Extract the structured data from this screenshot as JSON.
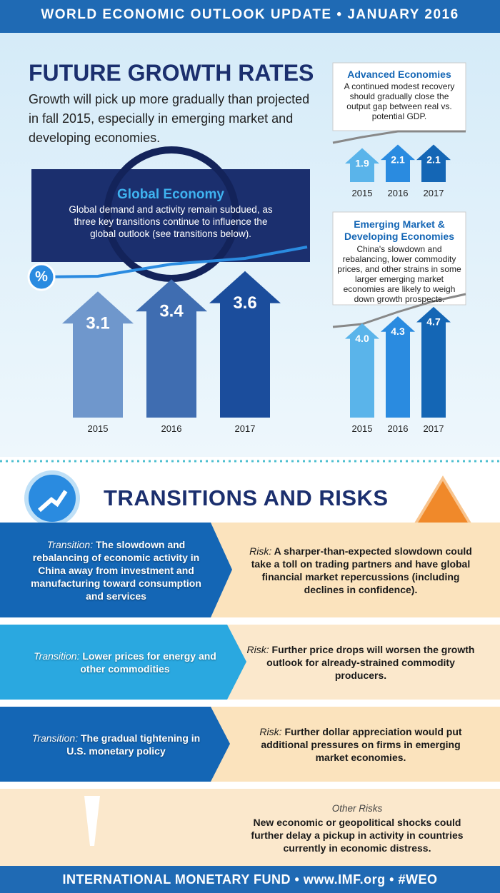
{
  "header": {
    "title": "WORLD ECONOMIC OUTLOOK UPDATE • JANUARY 2016"
  },
  "growth": {
    "title": "FUTURE GROWTH RATES",
    "intro": "Growth will pick up more gradually than projected in fall 2015, especially in emerging market and developing economies.",
    "global": {
      "title": "Global Economy",
      "text": "Global demand and activity remain subdued, as three key transitions continue to influence the global outlook (see transitions below).",
      "icon": "%",
      "years": [
        "2015",
        "2016",
        "2017"
      ],
      "values": [
        3.1,
        3.4,
        3.6
      ]
    },
    "advanced": {
      "title": "Advanced Economies",
      "text": "A continued modest recovery should gradually close the output gap between real vs. potential GDP.",
      "years": [
        "2015",
        "2016",
        "2017"
      ],
      "values": [
        1.9,
        2.1,
        2.1
      ]
    },
    "emerging": {
      "title": "Emerging Market & Developing Economies",
      "text": "China's slowdown and rebalancing, lower commodity prices, and other strains in some larger emerging market economies are likely to weigh down growth prospects.",
      "years": [
        "2015",
        "2016",
        "2017"
      ],
      "values": [
        4.0,
        4.3,
        4.7
      ],
      "value_labels": [
        "4.0",
        "4.3",
        "4.7"
      ]
    }
  },
  "transitions": {
    "title": "TRANSITIONS AND RISKS",
    "rows": [
      {
        "transition_label": "Transition:",
        "transition": "The slowdown and rebalancing of economic activity in China away from investment and manufacturing toward consumption and services",
        "risk_label": "Risk:",
        "risk": "A sharper-than-expected slowdown could take a toll on trading partners and have global financial market repercussions (including declines in confidence)."
      },
      {
        "transition_label": "Transition:",
        "transition": "Lower prices for energy and other commodities",
        "risk_label": "Risk:",
        "risk": "Further price drops will worsen the growth outlook for already-strained commodity producers."
      },
      {
        "transition_label": "Transition:",
        "transition": "The gradual tightening in U.S. monetary policy",
        "risk_label": "Risk:",
        "risk": "Further dollar appreciation would put additional pressures on firms in emerging market economies."
      }
    ],
    "other": {
      "label": "Other Risks",
      "text": "New economic or geopolitical shocks could further delay a pickup in activity in countries currently in economic distress."
    }
  },
  "footer": {
    "text": "INTERNATIONAL MONETARY FUND • www.IMF.org • #WEO"
  }
}
